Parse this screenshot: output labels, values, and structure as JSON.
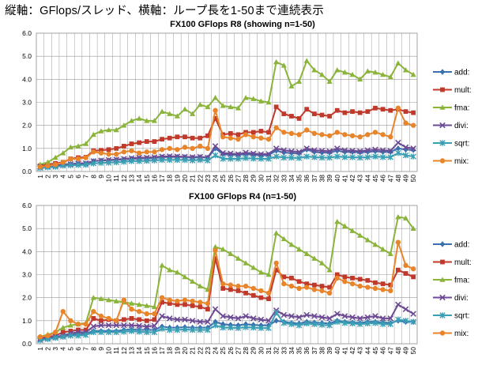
{
  "headline": "縦軸：GFlops/スレッド、横軸：ループ長を1-50まで連続表示",
  "chart_data": [
    {
      "type": "line",
      "title": "FX100 GFlops R8 (showing n=1-50)",
      "xlabel": "",
      "ylabel": "",
      "ylim": [
        0,
        6
      ],
      "yticks": [
        "0.0",
        "1.0",
        "2.0",
        "3.0",
        "4.0",
        "5.0",
        "6.0"
      ],
      "x": [
        1,
        2,
        3,
        4,
        5,
        6,
        7,
        8,
        9,
        10,
        11,
        12,
        13,
        14,
        15,
        16,
        17,
        18,
        19,
        20,
        21,
        22,
        23,
        24,
        25,
        26,
        27,
        28,
        29,
        30,
        31,
        32,
        33,
        34,
        35,
        36,
        37,
        38,
        39,
        40,
        41,
        42,
        43,
        44,
        45,
        46,
        47,
        48,
        49,
        50
      ],
      "grid": true,
      "legend": "right",
      "series": [
        {
          "name": "add:",
          "color": "#3a6fb0",
          "marker": "diamond",
          "values": [
            0.2,
            0.22,
            0.25,
            0.3,
            0.32,
            0.33,
            0.34,
            0.45,
            0.47,
            0.48,
            0.5,
            0.52,
            0.55,
            0.56,
            0.57,
            0.58,
            0.62,
            0.63,
            0.63,
            0.62,
            0.6,
            0.62,
            0.6,
            1.0,
            0.75,
            0.73,
            0.72,
            0.75,
            0.73,
            0.7,
            0.72,
            0.9,
            0.82,
            0.8,
            0.78,
            0.95,
            0.85,
            0.82,
            0.82,
            0.9,
            0.85,
            0.85,
            0.83,
            0.85,
            0.88,
            0.85,
            0.85,
            1.0,
            0.95,
            0.93
          ]
        },
        {
          "name": "mult:",
          "color": "#c0392b",
          "marker": "square",
          "values": [
            0.25,
            0.3,
            0.35,
            0.4,
            0.55,
            0.6,
            0.62,
            0.9,
            0.92,
            0.95,
            1.0,
            1.1,
            1.2,
            1.25,
            1.3,
            1.3,
            1.4,
            1.45,
            1.5,
            1.5,
            1.45,
            1.45,
            1.55,
            2.3,
            1.6,
            1.65,
            1.6,
            1.7,
            1.7,
            1.75,
            1.7,
            2.8,
            2.5,
            2.4,
            2.3,
            2.7,
            2.5,
            2.45,
            2.4,
            2.65,
            2.55,
            2.6,
            2.55,
            2.6,
            2.75,
            2.7,
            2.65,
            2.7,
            2.6,
            2.55
          ]
        },
        {
          "name": "fma:",
          "color": "#8ab43a",
          "marker": "triangle",
          "values": [
            0.3,
            0.4,
            0.6,
            0.8,
            1.05,
            1.1,
            1.2,
            1.6,
            1.75,
            1.8,
            1.8,
            2.0,
            2.2,
            2.3,
            2.2,
            2.2,
            2.6,
            2.5,
            2.4,
            2.7,
            2.5,
            2.9,
            2.8,
            3.2,
            2.85,
            2.8,
            2.75,
            3.2,
            3.15,
            3.05,
            3.0,
            4.75,
            4.6,
            3.7,
            3.9,
            4.8,
            4.4,
            4.2,
            3.9,
            4.4,
            4.3,
            4.2,
            4.0,
            4.35,
            4.3,
            4.2,
            4.1,
            4.7,
            4.4,
            4.2
          ]
        },
        {
          "name": "divi:",
          "color": "#6c4a94",
          "marker": "x",
          "values": [
            0.2,
            0.22,
            0.25,
            0.3,
            0.32,
            0.35,
            0.36,
            0.45,
            0.48,
            0.5,
            0.52,
            0.55,
            0.58,
            0.6,
            0.6,
            0.62,
            0.65,
            0.66,
            0.65,
            0.64,
            0.62,
            0.64,
            0.6,
            1.1,
            0.8,
            0.78,
            0.75,
            0.82,
            0.78,
            0.75,
            0.76,
            1.0,
            0.92,
            0.88,
            0.85,
            1.0,
            0.92,
            0.9,
            0.88,
            1.0,
            0.92,
            0.9,
            0.88,
            0.92,
            0.95,
            0.92,
            0.9,
            1.25,
            1.05,
            1.0
          ]
        },
        {
          "name": "sqrt:",
          "color": "#3a9fb5",
          "marker": "star",
          "values": [
            0.15,
            0.18,
            0.2,
            0.25,
            0.27,
            0.28,
            0.29,
            0.35,
            0.37,
            0.38,
            0.4,
            0.42,
            0.45,
            0.45,
            0.46,
            0.48,
            0.5,
            0.5,
            0.5,
            0.5,
            0.48,
            0.5,
            0.48,
            0.7,
            0.55,
            0.55,
            0.55,
            0.58,
            0.56,
            0.55,
            0.55,
            0.65,
            0.6,
            0.6,
            0.58,
            0.65,
            0.62,
            0.6,
            0.6,
            0.65,
            0.62,
            0.62,
            0.6,
            0.62,
            0.65,
            0.62,
            0.62,
            0.8,
            0.7,
            0.65
          ]
        },
        {
          "name": "mix:",
          "color": "#e8852a",
          "marker": "circle",
          "values": [
            0.2,
            0.25,
            0.3,
            0.4,
            0.55,
            0.55,
            0.6,
            0.85,
            0.8,
            0.75,
            0.75,
            0.85,
            0.9,
            0.8,
            0.85,
            0.85,
            0.95,
            1.0,
            0.95,
            1.05,
            1.0,
            1.1,
            1.0,
            2.65,
            1.5,
            1.45,
            1.4,
            1.6,
            1.5,
            1.45,
            1.4,
            1.9,
            1.7,
            1.65,
            1.6,
            1.8,
            1.65,
            1.6,
            1.55,
            1.7,
            1.6,
            1.55,
            1.5,
            1.6,
            1.7,
            1.6,
            1.5,
            2.75,
            2.1,
            2.0
          ]
        }
      ]
    },
    {
      "type": "line",
      "title": "FX100 GFlops R4 (n=1-50)",
      "xlabel": "",
      "ylabel": "",
      "ylim": [
        0,
        6
      ],
      "yticks": [
        "0.0",
        "1.0",
        "2.0",
        "3.0",
        "4.0",
        "5.0",
        "6.0"
      ],
      "x": [
        1,
        2,
        3,
        4,
        5,
        6,
        7,
        8,
        9,
        10,
        11,
        12,
        13,
        14,
        15,
        16,
        17,
        18,
        19,
        20,
        21,
        22,
        23,
        24,
        25,
        26,
        27,
        28,
        29,
        30,
        31,
        32,
        33,
        34,
        35,
        36,
        37,
        38,
        39,
        40,
        41,
        42,
        43,
        44,
        45,
        46,
        47,
        48,
        49,
        50
      ],
      "grid": true,
      "legend": "right",
      "series": [
        {
          "name": "add:",
          "color": "#3a6fb0",
          "marker": "diamond",
          "values": [
            0.2,
            0.25,
            0.3,
            0.35,
            0.4,
            0.42,
            0.45,
            0.55,
            0.55,
            0.55,
            0.55,
            0.6,
            0.62,
            0.6,
            0.6,
            0.6,
            0.75,
            0.7,
            0.7,
            0.72,
            0.7,
            0.7,
            0.7,
            0.95,
            0.85,
            0.82,
            0.8,
            0.85,
            0.82,
            0.8,
            0.8,
            1.0,
            0.95,
            0.9,
            0.88,
            0.95,
            0.92,
            0.9,
            0.88,
            1.0,
            0.95,
            0.92,
            0.9,
            0.95,
            0.95,
            0.92,
            0.9,
            1.0,
            0.95,
            0.95
          ]
        },
        {
          "name": "mult:",
          "color": "#c0392b",
          "marker": "square",
          "values": [
            0.25,
            0.3,
            0.35,
            0.5,
            0.55,
            0.6,
            0.6,
            1.1,
            1.0,
            1.05,
            1.0,
            1.05,
            1.1,
            1.05,
            1.0,
            1.05,
            1.8,
            1.75,
            1.7,
            1.7,
            1.65,
            1.6,
            1.5,
            3.7,
            2.4,
            2.35,
            2.3,
            2.2,
            2.1,
            2.0,
            1.95,
            3.2,
            2.9,
            2.85,
            2.7,
            2.6,
            2.55,
            2.5,
            2.45,
            3.0,
            2.9,
            2.85,
            2.8,
            2.75,
            2.65,
            2.6,
            2.55,
            3.2,
            3.05,
            2.9
          ]
        },
        {
          "name": "fma:",
          "color": "#8ab43a",
          "marker": "triangle",
          "values": [
            0.3,
            0.4,
            0.5,
            0.7,
            0.8,
            0.85,
            0.9,
            2.0,
            1.95,
            1.9,
            1.85,
            1.8,
            1.75,
            1.7,
            1.65,
            1.6,
            3.4,
            3.2,
            3.1,
            2.9,
            2.7,
            2.5,
            2.35,
            4.2,
            4.1,
            3.9,
            3.7,
            3.5,
            3.3,
            3.1,
            3.0,
            4.8,
            4.55,
            4.3,
            4.1,
            3.9,
            3.7,
            3.5,
            3.2,
            5.3,
            5.1,
            4.9,
            4.7,
            4.5,
            4.3,
            4.1,
            3.9,
            5.5,
            5.45,
            5.0
          ]
        },
        {
          "name": "divi:",
          "color": "#6c4a94",
          "marker": "x",
          "values": [
            0.2,
            0.25,
            0.3,
            0.35,
            0.45,
            0.5,
            0.5,
            0.75,
            0.8,
            0.8,
            0.8,
            0.8,
            0.8,
            0.78,
            0.75,
            0.78,
            1.2,
            1.1,
            1.05,
            1.05,
            1.0,
            0.95,
            0.95,
            1.5,
            1.2,
            1.15,
            1.1,
            1.2,
            1.1,
            1.05,
            1.0,
            1.45,
            1.25,
            1.2,
            1.15,
            1.25,
            1.2,
            1.15,
            1.1,
            1.3,
            1.2,
            1.15,
            1.1,
            1.15,
            1.2,
            1.1,
            1.1,
            1.7,
            1.5,
            1.3
          ]
        },
        {
          "name": "sqrt:",
          "color": "#3a9fb5",
          "marker": "star",
          "values": [
            0.15,
            0.2,
            0.25,
            0.3,
            0.35,
            0.35,
            0.38,
            0.5,
            0.5,
            0.5,
            0.5,
            0.52,
            0.55,
            0.52,
            0.5,
            0.5,
            0.65,
            0.6,
            0.6,
            0.62,
            0.6,
            0.6,
            0.6,
            0.8,
            0.7,
            0.7,
            0.68,
            0.72,
            0.7,
            0.68,
            0.68,
            1.35,
            0.9,
            0.85,
            0.8,
            0.88,
            0.85,
            0.82,
            0.8,
            0.95,
            0.9,
            0.88,
            0.85,
            0.88,
            0.9,
            0.85,
            0.85,
            1.05,
            1.0,
            0.95
          ]
        },
        {
          "name": "mix:",
          "color": "#e8852a",
          "marker": "circle",
          "values": [
            0.3,
            0.35,
            0.5,
            1.4,
            1.0,
            0.85,
            0.85,
            1.4,
            1.2,
            1.1,
            1.0,
            1.9,
            1.5,
            1.4,
            1.3,
            1.3,
            2.0,
            1.9,
            1.85,
            1.9,
            1.85,
            1.8,
            1.75,
            4.05,
            2.6,
            2.55,
            2.5,
            2.5,
            2.4,
            2.3,
            2.2,
            3.5,
            2.6,
            2.5,
            2.4,
            2.45,
            2.35,
            2.3,
            2.2,
            2.85,
            2.7,
            2.6,
            2.5,
            2.45,
            2.4,
            2.35,
            2.3,
            4.4,
            3.4,
            3.25
          ]
        }
      ]
    }
  ]
}
